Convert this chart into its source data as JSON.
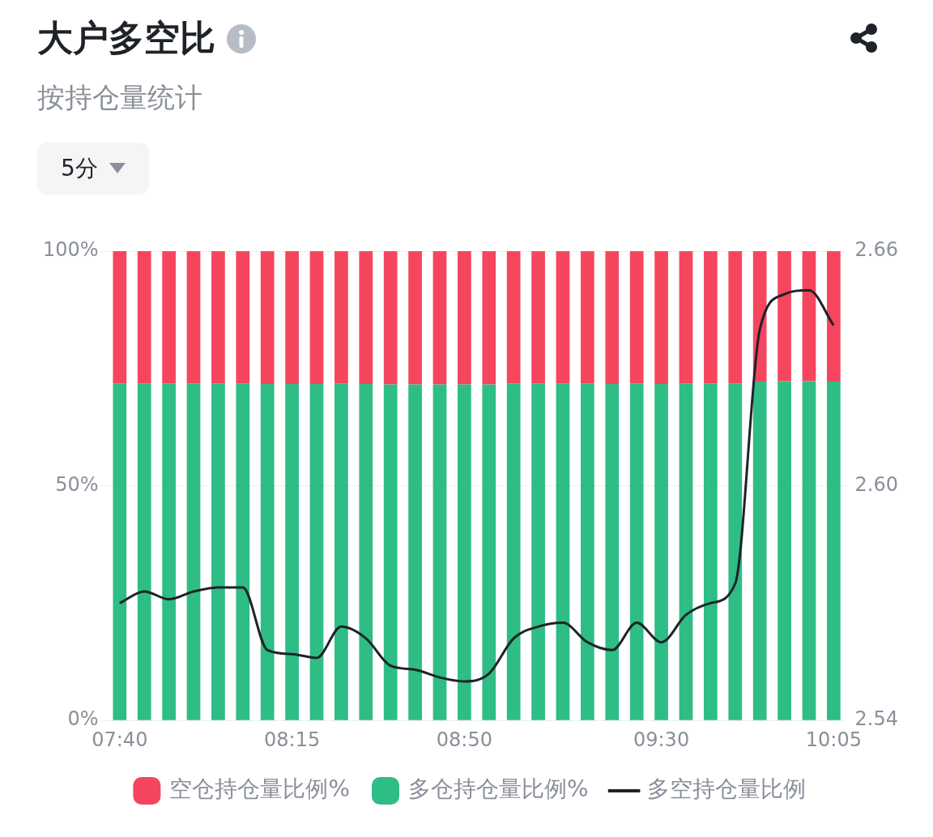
{
  "chart_data": {
    "type": "bar",
    "title": "大户多空比",
    "subtitle": "按持仓量统计",
    "annotations": [
      "5分"
    ],
    "categories": [
      "07:40",
      null,
      null,
      null,
      null,
      null,
      null,
      "08:15",
      null,
      null,
      null,
      null,
      null,
      null,
      "08:50",
      null,
      null,
      null,
      null,
      null,
      null,
      null,
      "09:30",
      null,
      null,
      null,
      null,
      null,
      null,
      "10:05"
    ],
    "stacked": true,
    "series": [
      {
        "name": "多仓持仓量比例%",
        "color": "#2ebd85",
        "values": [
          71.8,
          71.8,
          71.8,
          71.8,
          71.8,
          71.8,
          71.7,
          71.7,
          71.7,
          71.8,
          71.7,
          71.6,
          71.6,
          71.6,
          71.6,
          71.6,
          71.8,
          71.8,
          71.8,
          71.8,
          71.7,
          71.8,
          71.7,
          71.8,
          71.8,
          71.8,
          72.2,
          72.3,
          72.3,
          72.2
        ]
      },
      {
        "name": "空仓持仓量比例%",
        "color": "#f6465d",
        "values": [
          28.2,
          28.2,
          28.2,
          28.2,
          28.2,
          28.2,
          28.3,
          28.3,
          28.3,
          28.2,
          28.3,
          28.4,
          28.4,
          28.4,
          28.4,
          28.4,
          28.2,
          28.2,
          28.2,
          28.2,
          28.3,
          28.2,
          28.3,
          28.2,
          28.2,
          28.2,
          27.8,
          27.7,
          27.7,
          27.8
        ]
      },
      {
        "name": "多空持仓量比例",
        "type": "line",
        "axis": "y2",
        "color": "#1e2329",
        "values": [
          2.57,
          2.573,
          2.571,
          2.573,
          2.574,
          2.574,
          2.558,
          2.557,
          2.556,
          2.564,
          2.561,
          2.554,
          2.553,
          2.551,
          2.55,
          2.552,
          2.561,
          2.564,
          2.565,
          2.56,
          2.558,
          2.565,
          2.56,
          2.567,
          2.57,
          2.575,
          2.64,
          2.649,
          2.65,
          2.641
        ]
      }
    ],
    "ylim": [
      0,
      100
    ],
    "yticks": [
      {
        "value": 0,
        "label": "0%"
      },
      {
        "value": 50,
        "label": "50%"
      },
      {
        "value": 100,
        "label": "100%"
      }
    ],
    "y2lim": [
      2.54,
      2.66
    ],
    "y2ticks": [
      2.54,
      {
        "value": 2.6,
        "label": "2.60"
      },
      2.66
    ],
    "grid": "y",
    "legend": "bottom",
    "marker": "none"
  }
}
